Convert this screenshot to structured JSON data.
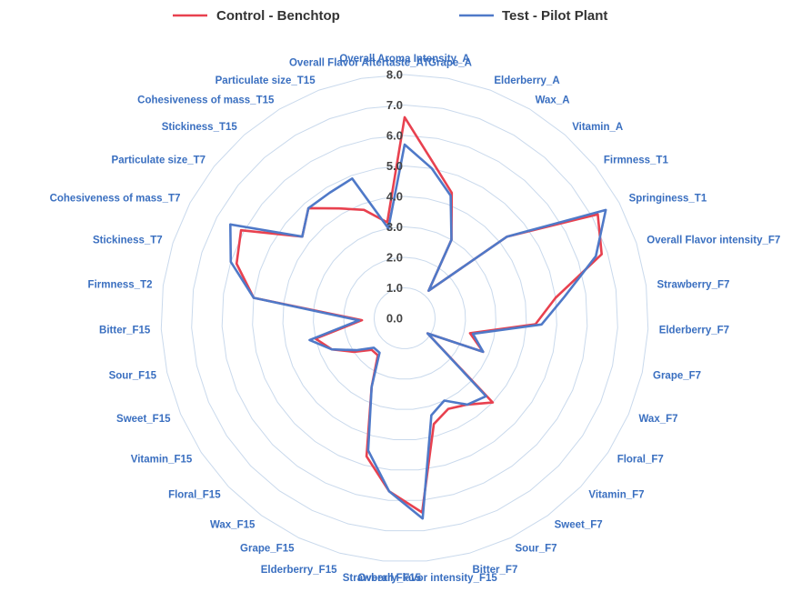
{
  "chart_data": {
    "type": "radar",
    "legend_position": "top",
    "grid": true,
    "rlim": [
      0,
      8
    ],
    "ticks": [
      "0.0",
      "1.0",
      "2.0",
      "3.0",
      "4.0",
      "5.0",
      "6.0",
      "7.0",
      "8.0"
    ],
    "axes": [
      "Overall Aroma Intensity_A",
      "Grape_A",
      "Elderberry_A",
      "Wax_A",
      "Vitamin_A",
      "Firmness_T1",
      "Springiness_T1",
      "Overall Flavor intensity_F7",
      "Strawberry_F7",
      "Elderberry_F7",
      "Grape_F7",
      "Wax_F7",
      "Floral_F7",
      "Vitamin_F7",
      "Sweet_F7",
      "Sour_F7",
      "Bitter_F7",
      "Overall Flavor intensity_F15",
      "Strawberry_F15",
      "Elderberry_F15",
      "Grape_F15",
      "Wax_F15",
      "Floral_F15",
      "Vitamin_F15",
      "Sweet_F15",
      "Sour_F15",
      "Bitter_F15",
      "Firmness_T2",
      "Stickiness_T7",
      "Cohesiveness of mass_T7",
      "Particulate size_T7",
      "Stickiness_T15",
      "Cohesiveness of mass_T15",
      "Particulate size_T15",
      "Overall Flavor Aftertaste_AT"
    ],
    "series": [
      {
        "name": "Control - Benchtop",
        "color": "#e8414f",
        "values": [
          6.6,
          5.2,
          4.4,
          3.0,
          1.2,
          4.3,
          7.2,
          6.8,
          5.0,
          4.3,
          2.2,
          2.8,
          0.9,
          4.0,
          3.5,
          3.3,
          3.6,
          6.4,
          5.7,
          4.7,
          2.5,
          1.5,
          1.5,
          2.0,
          2.6,
          3.0,
          1.4,
          5.0,
          5.8,
          6.1,
          4.3,
          4.8,
          4.2,
          3.8,
          3.2
        ]
      },
      {
        "name": "Test - Pilot Plant",
        "color": "#4f79c8",
        "values": [
          5.7,
          5.0,
          4.3,
          3.0,
          1.2,
          4.3,
          7.5,
          6.6,
          5.3,
          4.5,
          2.3,
          2.8,
          0.9,
          3.7,
          3.5,
          3.0,
          3.3,
          6.6,
          5.7,
          4.5,
          2.5,
          1.4,
          1.4,
          1.9,
          2.6,
          3.2,
          1.5,
          5.0,
          6.0,
          6.5,
          4.3,
          4.8,
          4.8,
          4.9,
          3.0
        ]
      }
    ]
  }
}
